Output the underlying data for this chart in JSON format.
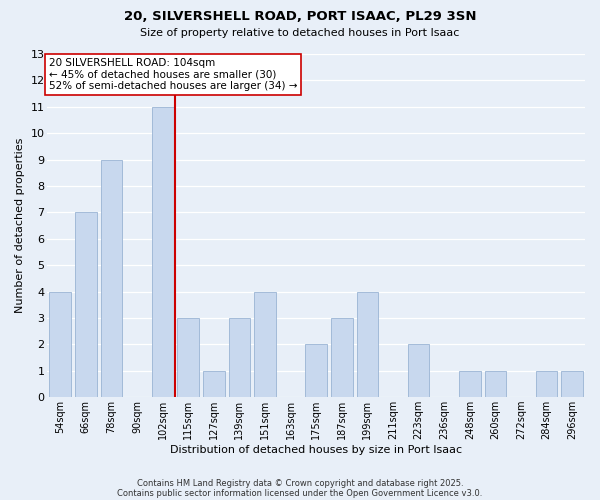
{
  "title1": "20, SILVERSHELL ROAD, PORT ISAAC, PL29 3SN",
  "title2": "Size of property relative to detached houses in Port Isaac",
  "xlabel": "Distribution of detached houses by size in Port Isaac",
  "ylabel": "Number of detached properties",
  "bar_labels": [
    "54sqm",
    "66sqm",
    "78sqm",
    "90sqm",
    "102sqm",
    "115sqm",
    "127sqm",
    "139sqm",
    "151sqm",
    "163sqm",
    "175sqm",
    "187sqm",
    "199sqm",
    "211sqm",
    "223sqm",
    "236sqm",
    "248sqm",
    "260sqm",
    "272sqm",
    "284sqm",
    "296sqm"
  ],
  "bar_values": [
    4,
    7,
    9,
    0,
    11,
    3,
    1,
    3,
    4,
    0,
    2,
    3,
    4,
    0,
    2,
    0,
    1,
    1,
    0,
    1,
    1
  ],
  "bar_color": "#c8d8ee",
  "bar_edge_color": "#9ab4d4",
  "vline_position": 4.5,
  "vline_color": "#cc0000",
  "annotation_title": "20 SILVERSHELL ROAD: 104sqm",
  "annotation_line1": "← 45% of detached houses are smaller (30)",
  "annotation_line2": "52% of semi-detached houses are larger (34) →",
  "annotation_box_color": "#ffffff",
  "annotation_box_edge": "#cc0000",
  "ylim": [
    0,
    13
  ],
  "yticks": [
    0,
    1,
    2,
    3,
    4,
    5,
    6,
    7,
    8,
    9,
    10,
    11,
    12,
    13
  ],
  "bg_color": "#e8eff8",
  "grid_color": "#ffffff",
  "footer1": "Contains HM Land Registry data © Crown copyright and database right 2025.",
  "footer2": "Contains public sector information licensed under the Open Government Licence v3.0."
}
